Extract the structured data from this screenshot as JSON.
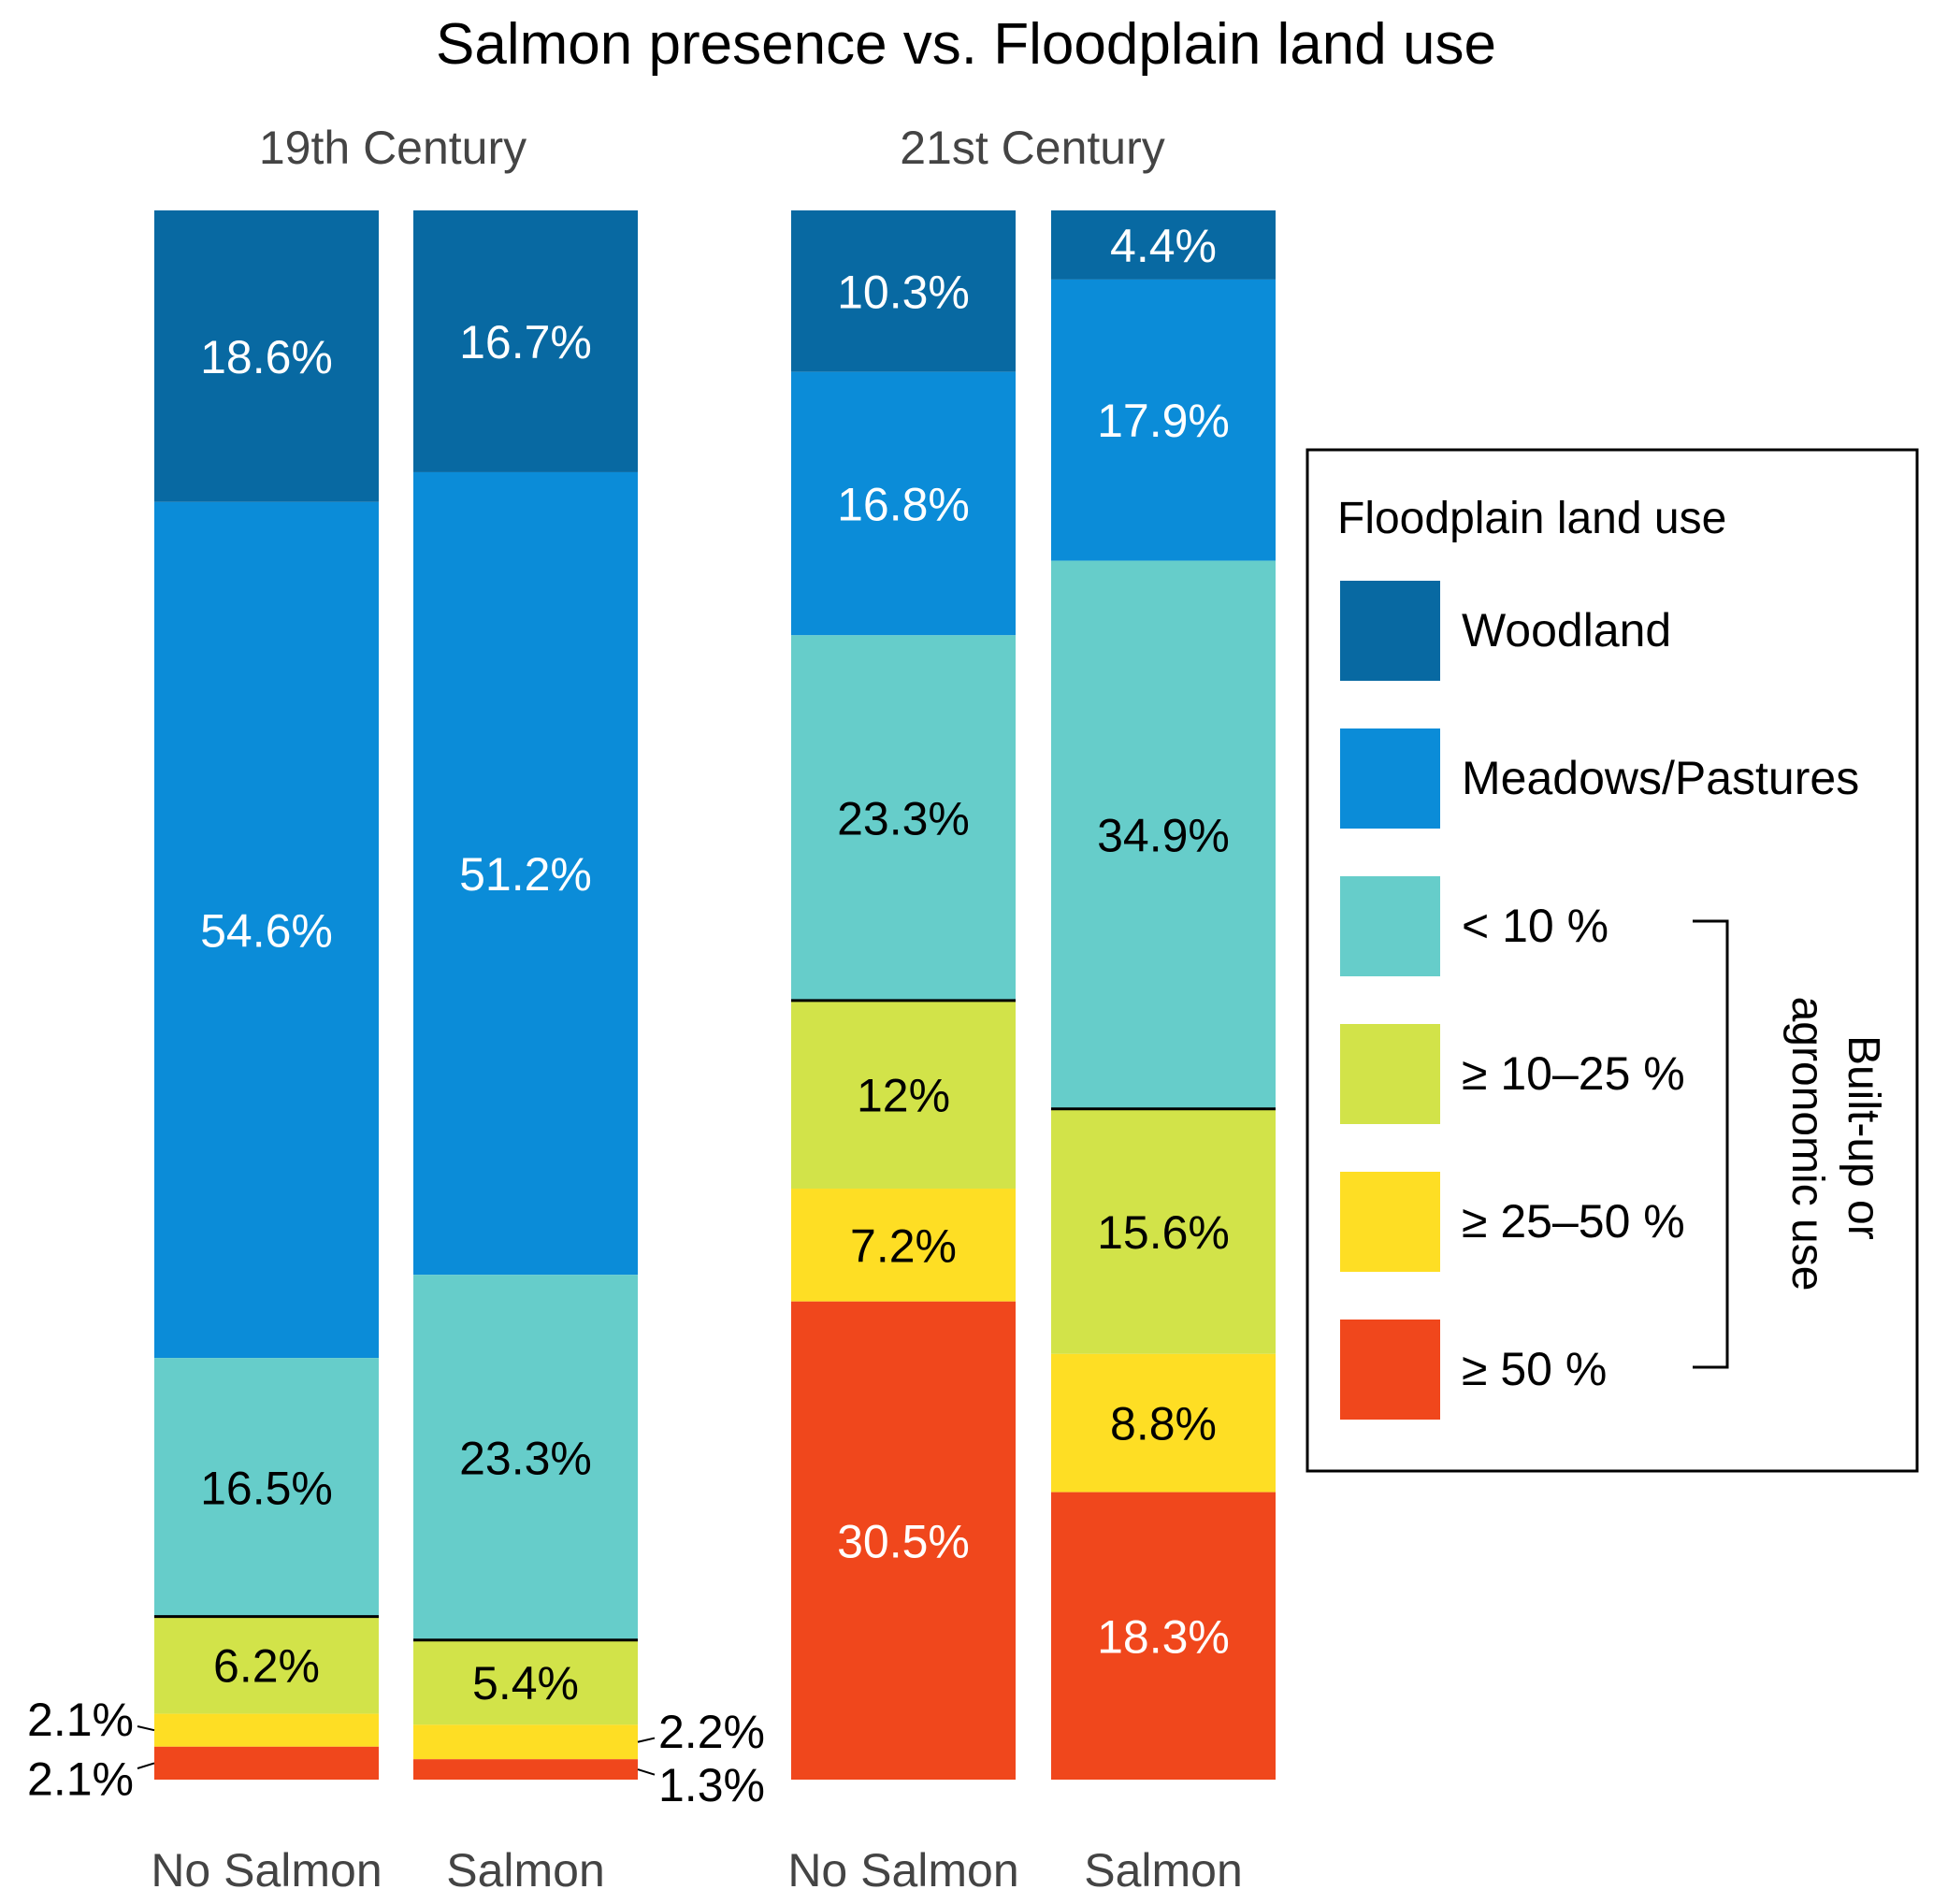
{
  "chart_data": {
    "type": "bar",
    "stacked": true,
    "normalized_percent": true,
    "title": "Salmon presence vs. Floodplain land use",
    "panels": [
      {
        "title": "19th Century",
        "categories": [
          "No Salmon",
          "Salmon"
        ],
        "label_texts": [
          [
            "18.6%",
            "54.6%",
            "16.5%",
            "6.2%",
            "2.1%",
            "2.1%"
          ],
          [
            "16.7%",
            "51.2%",
            "23.3%",
            "5.4%",
            "2.2%",
            "1.3%"
          ]
        ]
      },
      {
        "title": "21st Century",
        "categories": [
          "No Salmon",
          "Salmon"
        ],
        "label_texts": [
          [
            "10.3%",
            "16.8%",
            "23.3%",
            "12%",
            "7.2%",
            "30.5%"
          ],
          [
            "4.4%",
            "17.9%",
            "34.9%",
            "15.6%",
            "8.8%",
            "18.3%"
          ]
        ]
      }
    ],
    "series": [
      {
        "name": "Woodland",
        "color": "#0869A2",
        "label_color": "#ffffff"
      },
      {
        "name": "Meadows/Pastures",
        "color": "#0B8CD8",
        "label_color": "#ffffff"
      },
      {
        "name": "< 10 %",
        "color": "#66CDCA",
        "label_color": "#000000"
      },
      {
        "name": "≥ 10–25 %",
        "color": "#D2E349",
        "label_color": "#000000"
      },
      {
        "name": "≥ 25–50 %",
        "color": "#FEDE24",
        "label_color": "#000000"
      },
      {
        "name": "≥ 50 %",
        "color": "#F0471C",
        "label_color": "#ffffff"
      }
    ],
    "legend": {
      "title": "Floodplain land use",
      "bracket_label": [
        "Built-up or",
        "agronomic use"
      ],
      "position": "right"
    },
    "ylim": [
      0,
      100
    ]
  }
}
